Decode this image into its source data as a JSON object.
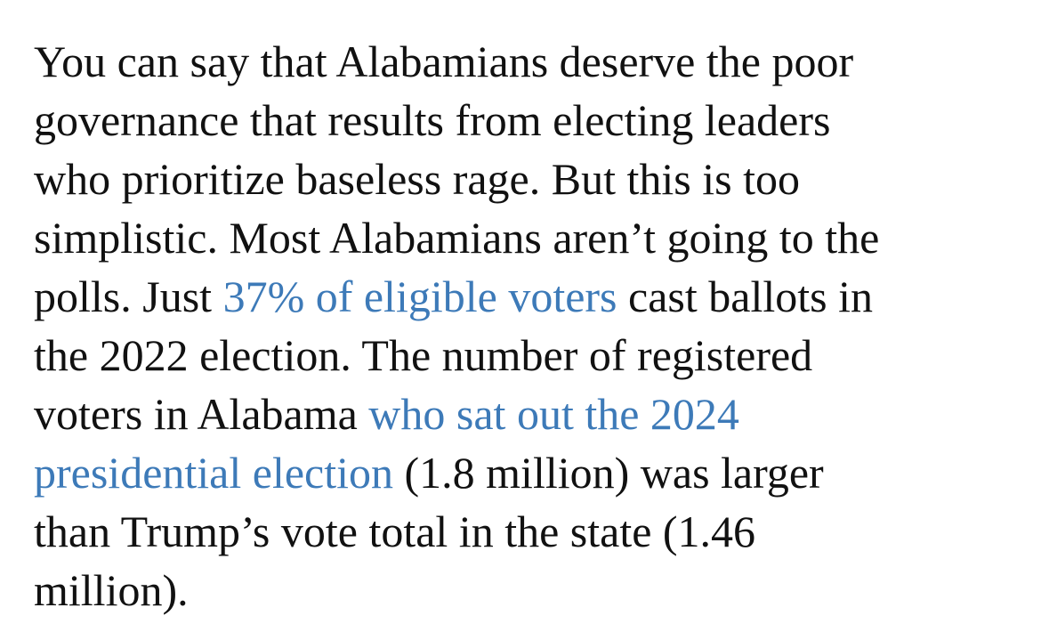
{
  "paragraph": {
    "l1": "You can say that Alabamians deserve the poor",
    "l2": "governance that results from electing leaders",
    "l3": "who prioritize baseless rage. But this is too",
    "l4": "simplistic. Most Alabamians aren’t going to the",
    "l5a": "polls. Just ",
    "l5link": "37% of eligible voters",
    "l5b": " cast ballots in",
    "l6": "the 2022 election. The number of registered",
    "l7a": "voters in Alabama ",
    "l7link": "who sat out the 2024",
    "l8link": "presidential election",
    "l8b": " (1.8 million) was larger",
    "l9": "than Trump’s vote total in the state (1.46",
    "l10": "million)."
  },
  "colors": {
    "text": "#111111",
    "link": "#3d7ab8"
  }
}
